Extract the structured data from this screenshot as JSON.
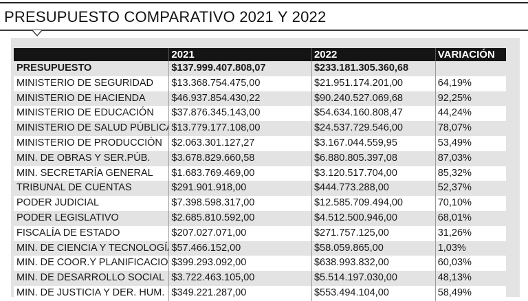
{
  "title": "PRESUPUESTO COMPARATIVO 2021 Y 2022",
  "table": {
    "headers": [
      "",
      "2021",
      "2022",
      "VARIACIÓN"
    ],
    "total": {
      "label": "PRESUPUESTO",
      "y2021": "$137.999.407.808,07",
      "y2022": "$233.181.305.360,68",
      "variation": ""
    },
    "rows": [
      {
        "label": "MINISTERIO DE SEGURIDAD",
        "y2021": "$13.368.754.475,00",
        "y2022": "$21.951.174.201,00",
        "variation": "64,19%"
      },
      {
        "label": "MINISTERIO DE HACIENDA",
        "y2021": "$46.937.854.430,22",
        "y2022": "$90.240.527.069,68",
        "variation": "92,25%"
      },
      {
        "label": "MINISTERIO DE EDUCACIÓN",
        "y2021": "$37.876.345.143,00",
        "y2022": "$54.634.160.808,47",
        "variation": "44,24%"
      },
      {
        "label": "MINISTERIO DE SALUD PÚBLICA",
        "y2021": "$13.779.177.108,00",
        "y2022": "$24.537.729.546,00",
        "variation": "78,07%"
      },
      {
        "label": "MINISTERIO DE PRODUCCIÓN",
        "y2021": "$2.063.301.127,27",
        "y2022": "$3.167.044.559,95",
        "variation": "53,49%"
      },
      {
        "label": "MIN. DE OBRAS Y SER.PÚB.",
        "y2021": "$3.678.829.660,58",
        "y2022": "$6.880.805.397,08",
        "variation": "87,03%"
      },
      {
        "label": "MIN. SECRETARÍA GENERAL",
        "y2021": "$1.683.769.469,00",
        "y2022": "$3.120.517.704,00",
        "variation": "85,32%"
      },
      {
        "label": "TRIBUNAL DE CUENTAS",
        "y2021": "$291.901.918,00",
        "y2022": "$444.773.288,00",
        "variation": "52,37%"
      },
      {
        "label": "PODER JUDICIAL",
        "y2021": "$7.398.598.317,00",
        "y2022": "$12.585.709.494,00",
        "variation": "70,10%"
      },
      {
        "label": "PODER LEGISLATIVO",
        "y2021": "$2.685.810.592,00",
        "y2022": "$4.512.500.946,00",
        "variation": "68,01%"
      },
      {
        "label": "FISCALÍA DE ESTADO",
        "y2021": "$207.027.071,00",
        "y2022": "$271.757.125,00",
        "variation": "31,26%"
      },
      {
        "label": "MIN. DE CIENCIA Y TECNOLOGÍA",
        "y2021": "$57.466.152,00",
        "y2022": "$58.059.865,00",
        "variation": "1,03%"
      },
      {
        "label": "MIN. DE COOR.Y PLANIFICACION",
        "y2021": "$399.293.092,00",
        "y2022": "$638.993.832,00",
        "variation": "60,03%"
      },
      {
        "label": "MIN. DE DESARROLLO SOCIAL",
        "y2021": "$3.722.463.105,00",
        "y2022": "$5.514.197.030,00",
        "variation": "48,13%"
      },
      {
        "label": "MIN. DE JUSTICIA Y DER. HUM.",
        "y2021": "$349.221.287,00",
        "y2022": "$553.494.104,00",
        "variation": "58,49%"
      }
    ]
  }
}
